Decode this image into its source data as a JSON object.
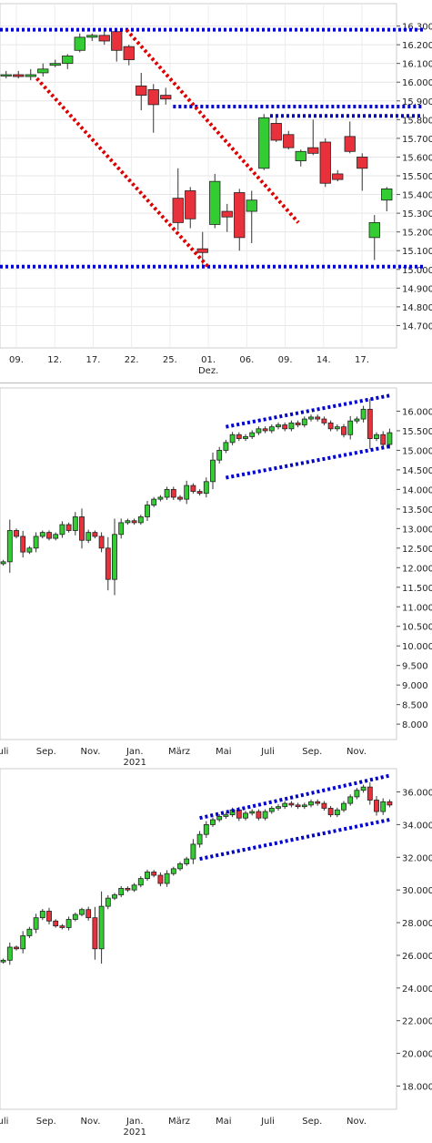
{
  "chart_data": [
    {
      "type": "candlestick",
      "title": "",
      "ylim": [
        14600,
        16400
      ],
      "y_ticks": [
        "16.300",
        "16.200",
        "16.100",
        "16.000",
        "15.900",
        "15.800",
        "15.700",
        "15.600",
        "15.500",
        "15.400",
        "15.300",
        "15.200",
        "15.100",
        "15.000",
        "14.900",
        "14.800",
        "14.700"
      ],
      "y_tick_values": [
        16300,
        16200,
        16100,
        16000,
        15900,
        15800,
        15700,
        15600,
        15500,
        15400,
        15300,
        15200,
        15100,
        15000,
        14900,
        14800,
        14700
      ],
      "x_ticks": [
        "09.",
        "12.",
        "17.",
        "22.",
        "25.",
        "01.",
        "06.",
        "09.",
        "14.",
        "17."
      ],
      "x_sublabels": [
        "",
        "",
        "",
        "",
        "",
        "Dez.",
        "",
        "",
        "",
        ""
      ],
      "grid": true,
      "candles": [
        {
          "o": 16040,
          "h": 16060,
          "l": 16020,
          "c": 16040
        },
        {
          "o": 16040,
          "h": 16060,
          "l": 16020,
          "c": 16030
        },
        {
          "o": 16030,
          "h": 16070,
          "l": 16010,
          "c": 16040
        },
        {
          "o": 16050,
          "h": 16100,
          "l": 16030,
          "c": 16070
        },
        {
          "o": 16090,
          "h": 16120,
          "l": 16080,
          "c": 16100
        },
        {
          "o": 16100,
          "h": 16150,
          "l": 16070,
          "c": 16140
        },
        {
          "o": 16170,
          "h": 16260,
          "l": 16160,
          "c": 16240
        },
        {
          "o": 16240,
          "h": 16260,
          "l": 16220,
          "c": 16250
        },
        {
          "o": 16250,
          "h": 16290,
          "l": 16200,
          "c": 16220
        },
        {
          "o": 16270,
          "h": 16280,
          "l": 16110,
          "c": 16170
        },
        {
          "o": 16190,
          "h": 16200,
          "l": 16090,
          "c": 16120
        },
        {
          "o": 15980,
          "h": 16050,
          "l": 15850,
          "c": 15930
        },
        {
          "o": 15960,
          "h": 15990,
          "l": 15730,
          "c": 15880
        },
        {
          "o": 15930,
          "h": 15970,
          "l": 15880,
          "c": 15910
        },
        {
          "o": 15380,
          "h": 15540,
          "l": 15210,
          "c": 15250
        },
        {
          "o": 15420,
          "h": 15440,
          "l": 15220,
          "c": 15270
        },
        {
          "o": 15110,
          "h": 15200,
          "l": 15020,
          "c": 15090
        },
        {
          "o": 15240,
          "h": 15510,
          "l": 15220,
          "c": 15470
        },
        {
          "o": 15310,
          "h": 15350,
          "l": 15200,
          "c": 15280
        },
        {
          "o": 15410,
          "h": 15430,
          "l": 15100,
          "c": 15170
        },
        {
          "o": 15310,
          "h": 15420,
          "l": 15140,
          "c": 15370
        },
        {
          "o": 15540,
          "h": 15830,
          "l": 15530,
          "c": 15810
        },
        {
          "o": 15780,
          "h": 15820,
          "l": 15680,
          "c": 15690
        },
        {
          "o": 15720,
          "h": 15740,
          "l": 15640,
          "c": 15650
        },
        {
          "o": 15580,
          "h": 15640,
          "l": 15550,
          "c": 15630
        },
        {
          "o": 15650,
          "h": 15800,
          "l": 15610,
          "c": 15620
        },
        {
          "o": 15680,
          "h": 15700,
          "l": 15440,
          "c": 15460
        },
        {
          "o": 15510,
          "h": 15530,
          "l": 15470,
          "c": 15480
        },
        {
          "o": 15710,
          "h": 15790,
          "l": 15620,
          "c": 15630
        },
        {
          "o": 15600,
          "h": 15620,
          "l": 15420,
          "c": 15540
        },
        {
          "o": 15170,
          "h": 15290,
          "l": 15050,
          "c": 15250
        },
        {
          "o": 15370,
          "h": 15440,
          "l": 15310,
          "c": 15430
        }
      ],
      "trendlines": [
        {
          "color": "#0000cc",
          "style": "dotted",
          "points": [
            [
              -0.5,
              16280
            ],
            [
              34,
              16280
            ]
          ]
        },
        {
          "color": "#0000cc",
          "style": "dotted",
          "points": [
            [
              13.6,
              15870
            ],
            [
              34,
              15870
            ]
          ]
        },
        {
          "color": "#0000cc",
          "style": "dotted",
          "points": [
            [
              21.5,
              15820
            ],
            [
              34,
              15820
            ]
          ]
        },
        {
          "color": "#0000cc",
          "style": "dotted",
          "points": [
            [
              -0.5,
              15015
            ],
            [
              34,
              15015
            ]
          ]
        },
        {
          "color": "#dd0000",
          "style": "dotted",
          "points": [
            [
              2.5,
              16020
            ],
            [
              16.5,
              15010
            ]
          ]
        },
        {
          "color": "#dd0000",
          "style": "dotted",
          "points": [
            [
              9.8,
              16280
            ],
            [
              23.8,
              15250
            ]
          ]
        }
      ]
    },
    {
      "type": "candlestick",
      "title": "",
      "ylim": [
        7700,
        16500
      ],
      "y_ticks": [
        "16.000",
        "15.500",
        "15.000",
        "14.500",
        "14.000",
        "13.500",
        "13.000",
        "12.500",
        "12.000",
        "11.500",
        "11.000",
        "10.500",
        "10.000",
        "9.500",
        "9.000",
        "8.500",
        "8.000"
      ],
      "y_tick_values": [
        16000,
        15500,
        15000,
        14500,
        14000,
        13500,
        13000,
        12500,
        12000,
        11500,
        11000,
        10500,
        10000,
        9500,
        9000,
        8500,
        8000
      ],
      "x_ticks": [
        "Juli",
        "Sep.",
        "Nov.",
        "Jan.",
        "März",
        "Mai",
        "Juli",
        "Sep.",
        "Nov."
      ],
      "x_sublabels": [
        "",
        "",
        "",
        "2021",
        "",
        "",
        "",
        "",
        ""
      ],
      "grid": false,
      "closes": [
        12150,
        12950,
        12800,
        12400,
        12500,
        12800,
        12900,
        12750,
        12850,
        13100,
        12950,
        13300,
        12700,
        12900,
        12800,
        12500,
        11700,
        12850,
        13150,
        13200,
        13150,
        13300,
        13600,
        13750,
        13800,
        14000,
        13800,
        13750,
        14100,
        13950,
        13900,
        14200,
        14750,
        15000,
        15200,
        15400,
        15300,
        15350,
        15450,
        15550,
        15500,
        15600,
        15650,
        15550,
        15700,
        15650,
        15800,
        15850,
        15800,
        15700,
        15550,
        15600,
        15400,
        15750,
        15800,
        16050,
        15300,
        15400,
        15150,
        15450
      ],
      "trendlines": [
        {
          "color": "#0000cc",
          "style": "dotted",
          "points": [
            [
              34,
              15600
            ],
            [
              59,
              16400
            ]
          ]
        },
        {
          "color": "#0000cc",
          "style": "dotted",
          "points": [
            [
              34,
              14300
            ],
            [
              59,
              15100
            ]
          ]
        }
      ]
    },
    {
      "type": "candlestick",
      "title": "",
      "ylim": [
        16800,
        37200
      ],
      "y_ticks": [
        "36.000",
        "34.000",
        "32.000",
        "30.000",
        "28.000",
        "26.000",
        "24.000",
        "22.000",
        "20.000",
        "18.000"
      ],
      "y_tick_values": [
        36000,
        34000,
        32000,
        30000,
        28000,
        26000,
        24000,
        22000,
        20000,
        18000
      ],
      "x_ticks": [
        "Juli",
        "Sep.",
        "Nov.",
        "Jan.",
        "März",
        "Mai",
        "Juli",
        "Sep.",
        "Nov."
      ],
      "x_sublabels": [
        "",
        "",
        "",
        "2021",
        "",
        "",
        "",
        "",
        ""
      ],
      "grid": false,
      "closes": [
        25700,
        26500,
        26400,
        27200,
        27600,
        28300,
        28700,
        28100,
        27800,
        27700,
        28200,
        28500,
        28800,
        28300,
        26400,
        29000,
        29500,
        29700,
        30100,
        30000,
        30300,
        30700,
        31100,
        30900,
        30400,
        31000,
        31300,
        31600,
        31900,
        32800,
        33400,
        34000,
        34300,
        34500,
        34600,
        34900,
        34400,
        34700,
        34800,
        34400,
        34800,
        35000,
        35100,
        35300,
        35200,
        35100,
        35200,
        35400,
        35300,
        35000,
        34600,
        34900,
        35300,
        35700,
        36100,
        36300,
        35500,
        34800,
        35400,
        35200
      ],
      "trendlines": [
        {
          "color": "#0000cc",
          "style": "dotted",
          "points": [
            [
              30,
              34400
            ],
            [
              59,
              37000
            ]
          ]
        },
        {
          "color": "#0000cc",
          "style": "dotted",
          "points": [
            [
              30,
              31900
            ],
            [
              59,
              34300
            ]
          ]
        }
      ]
    }
  ]
}
